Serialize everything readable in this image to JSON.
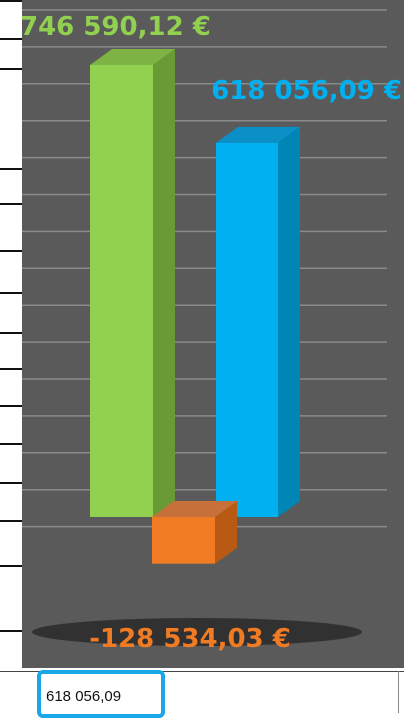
{
  "colors": {
    "background": "#5a5a5a",
    "grid": "#8a8a8a",
    "green": "#92d050",
    "green_dark": "#6a9a36",
    "green_top": "#7cb342",
    "blue": "#00b0f0",
    "blue_dark": "#0086b5",
    "blue_top": "#0a8fc6",
    "orange": "#f07b22",
    "orange_dark": "#b85a14",
    "orange_top": "#c8703a",
    "cell_border": "#1aa7e8"
  },
  "chart_data": {
    "type": "bar",
    "categories": [
      "",
      "",
      ""
    ],
    "values": [
      746590.12,
      -128534.03,
      618056.09
    ],
    "data_labels": [
      "746 590,12 €",
      "-128 534,03 €",
      "618 056,09 €"
    ],
    "bar_colors": [
      "green",
      "orange",
      "blue"
    ],
    "title": "",
    "xlabel": "",
    "ylabel": "",
    "ylim": [
      -128534.03,
      746590.12
    ],
    "grid": true,
    "legend": "none",
    "style": "3d-column"
  },
  "formula_cell": {
    "value": "618 056,09"
  }
}
